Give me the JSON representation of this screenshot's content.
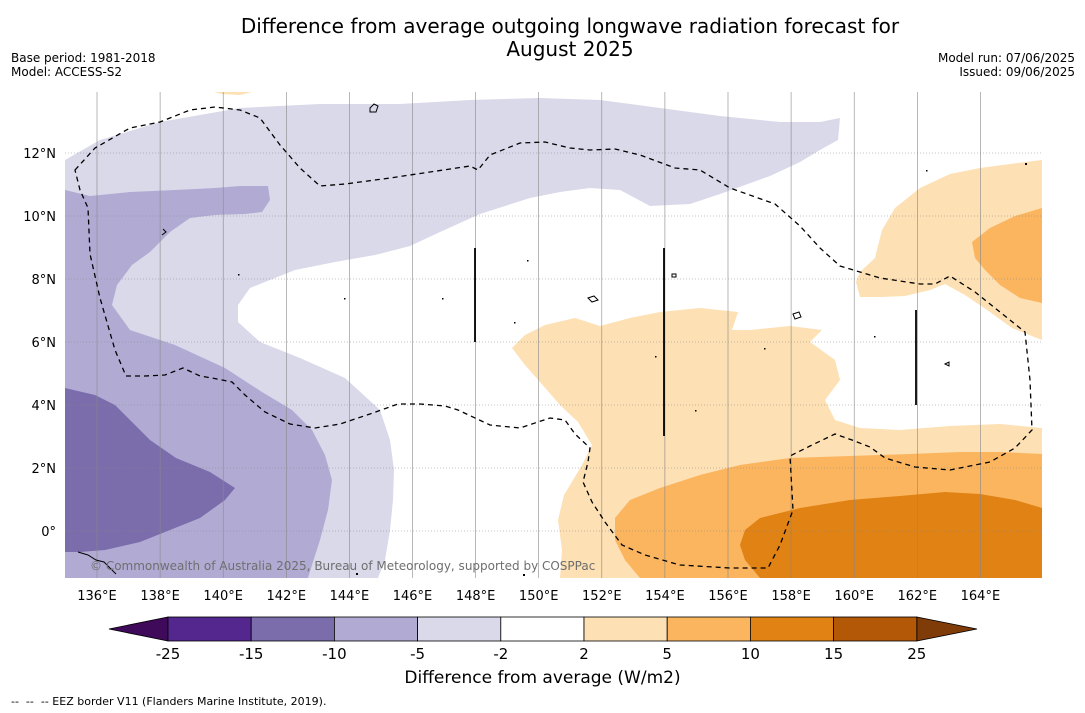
{
  "title_line1": "Difference from average outgoing longwave radiation forecast for",
  "title_line2": "August 2025",
  "meta": {
    "base_period": "Base period: 1981-2018",
    "model": "Model: ACCESS-S2",
    "model_run": "Model run: 07/06/2025",
    "issued": "Issued: 09/06/2025"
  },
  "map": {
    "lon_labels": [
      "136°E",
      "138°E",
      "140°E",
      "142°E",
      "144°E",
      "146°E",
      "148°E",
      "150°E",
      "152°E",
      "154°E",
      "156°E",
      "158°E",
      "160°E",
      "162°E",
      "164°E"
    ],
    "lat_labels": [
      "12°N",
      "10°N",
      "8°N",
      "6°N",
      "4°N",
      "2°N",
      "0°"
    ],
    "copyright": "© Commonwealth of Australia 2025, Bureau of Meteorology, supported by COSPPac"
  },
  "colorbar": {
    "title": "Difference from average (W/m2)",
    "ticks": [
      "-25",
      "-15",
      "-10",
      "-5",
      "-2",
      "2",
      "5",
      "10",
      "15",
      "25"
    ],
    "colors": {
      "below_min": "#3f0a5a",
      "n25_n15": "#54278f",
      "n15_n10": "#7b6dab",
      "n10_n5": "#b1abd4",
      "n5_n2": "#d9d9ea",
      "n2_p2": "#ffffff",
      "p2_p5": "#fde0b3",
      "p5_p10": "#fbb55f",
      "p10_p15": "#e08214",
      "p15_p25": "#b35806",
      "above_max": "#7f3b08"
    }
  },
  "footnote": "--  --  -- EEZ border V11 (Flanders Marine Institute, 2019)."
}
